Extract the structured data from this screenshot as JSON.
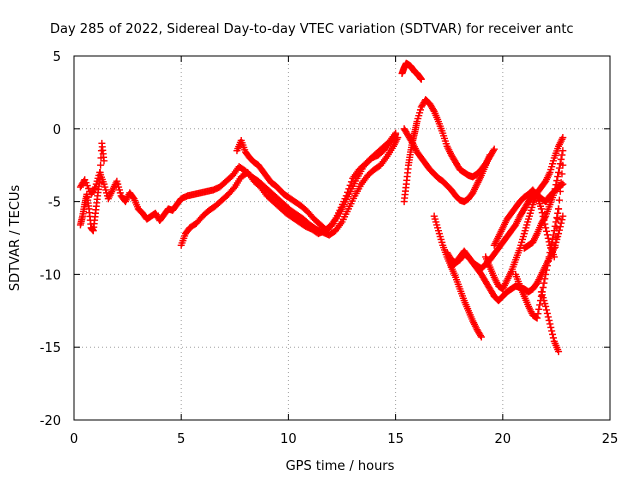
{
  "chart_data": {
    "type": "scatter",
    "title": "Day 285 of 2022, Sidereal Day-to-day VTEC variation (SDTVAR) for receiver antc",
    "xlabel": "GPS time / hours",
    "ylabel": "SDTVAR / TECUs",
    "xlim": [
      0,
      25
    ],
    "ylim": [
      -20,
      5
    ],
    "xticks": [
      0,
      5,
      10,
      15,
      20,
      25
    ],
    "yticks": [
      -20,
      -15,
      -10,
      -5,
      0,
      5
    ],
    "xtick_labels": [
      "0",
      "5",
      "10",
      "15",
      "20",
      "25"
    ],
    "ytick_labels": [
      "-20",
      "-15",
      "-10",
      "-5",
      "0",
      "5"
    ],
    "grid": true,
    "marker": "+",
    "color": "#ff0000",
    "series": [
      {
        "name": "track-main",
        "x": [
          0.3,
          0.5,
          0.8,
          1.0,
          1.2,
          1.4,
          1.6,
          1.8,
          2.0,
          2.2,
          2.4,
          2.6,
          2.8,
          3.0,
          3.2,
          3.4,
          3.6,
          3.8,
          4.0,
          4.2,
          4.4,
          4.6,
          4.8,
          5.0,
          5.3,
          5.6,
          5.9,
          6.2,
          6.5,
          6.8,
          7.1,
          7.4,
          7.7,
          8.0,
          8.3,
          8.6,
          8.9,
          9.2,
          9.5,
          9.8,
          10.1,
          10.4,
          10.7,
          11.0,
          11.3,
          11.6,
          11.9,
          12.2,
          12.5,
          12.8,
          13.1,
          13.4,
          13.7,
          14.0,
          14.3,
          14.6,
          14.9,
          15.1
        ],
        "y": [
          -4.0,
          -3.5,
          -4.5,
          -4.0,
          -3.0,
          -3.8,
          -4.8,
          -4.2,
          -3.6,
          -4.6,
          -5.0,
          -4.4,
          -4.8,
          -5.5,
          -5.8,
          -6.2,
          -6.0,
          -5.8,
          -6.3,
          -5.9,
          -5.5,
          -5.6,
          -5.2,
          -4.8,
          -4.6,
          -4.5,
          -4.4,
          -4.3,
          -4.2,
          -4.0,
          -3.6,
          -3.2,
          -2.6,
          -2.9,
          -3.3,
          -3.6,
          -4.0,
          -4.4,
          -4.8,
          -5.2,
          -5.6,
          -5.9,
          -6.2,
          -6.6,
          -6.9,
          -7.1,
          -7.3,
          -7.0,
          -6.4,
          -5.5,
          -4.6,
          -3.8,
          -3.2,
          -2.8,
          -2.5,
          -1.9,
          -1.2,
          -0.6
        ]
      },
      {
        "name": "track-upper",
        "x": [
          7.6,
          7.8,
          8.0,
          8.2,
          8.4,
          8.6,
          8.8,
          9.0,
          9.2,
          9.4,
          9.6,
          9.8,
          10.0,
          10.3,
          10.6,
          10.9,
          11.2,
          11.5,
          11.8,
          12.1,
          12.4,
          12.7,
          13.0,
          13.3,
          13.6,
          13.9,
          14.2,
          14.5,
          14.8,
          15.0
        ],
        "y": [
          -1.5,
          -0.8,
          -1.6,
          -2.0,
          -2.3,
          -2.5,
          -2.9,
          -3.3,
          -3.7,
          -3.9,
          -4.2,
          -4.5,
          -4.7,
          -5.0,
          -5.3,
          -5.7,
          -6.2,
          -6.6,
          -7.0,
          -6.5,
          -5.6,
          -4.6,
          -3.4,
          -2.8,
          -2.4,
          -2.0,
          -1.8,
          -1.4,
          -0.8,
          -0.4
        ]
      },
      {
        "name": "track-lower",
        "x": [
          5.0,
          5.2,
          5.4,
          5.7,
          6.0,
          6.3,
          6.6,
          6.9,
          7.2,
          7.5,
          7.8,
          8.1,
          8.4,
          8.7,
          9.0,
          9.3,
          9.6,
          9.9,
          10.2,
          10.5,
          10.8,
          11.1,
          11.4,
          11.7,
          12.0,
          12.3,
          12.6,
          12.9,
          13.2,
          13.5,
          13.8,
          14.1,
          14.4,
          14.7,
          15.0
        ],
        "y": [
          -8.0,
          -7.2,
          -6.8,
          -6.5,
          -6.0,
          -5.6,
          -5.3,
          -4.9,
          -4.5,
          -4.0,
          -3.3,
          -3.0,
          -3.6,
          -4.0,
          -4.6,
          -5.0,
          -5.4,
          -5.8,
          -6.1,
          -6.4,
          -6.7,
          -6.9,
          -7.2,
          -7.0,
          -6.6,
          -6.0,
          -5.2,
          -4.3,
          -3.4,
          -2.6,
          -2.1,
          -1.7,
          -1.3,
          -0.9,
          -0.3
        ]
      },
      {
        "name": "track-spike",
        "x": [
          15.3,
          15.4,
          15.5,
          15.6,
          15.7,
          15.8,
          15.9,
          16.0,
          16.1,
          16.2
        ],
        "y": [
          3.8,
          4.2,
          4.5,
          4.4,
          4.3,
          4.1,
          3.9,
          3.8,
          3.6,
          3.4
        ]
      },
      {
        "name": "track-rise",
        "x": [
          15.4,
          15.5,
          15.6,
          15.7,
          15.8,
          15.9,
          16.0,
          16.2,
          16.4,
          16.6,
          16.8,
          17.0,
          17.2,
          17.4,
          17.6,
          17.8,
          18.0,
          18.2,
          18.4,
          18.6,
          18.8,
          19.0,
          19.2,
          19.4,
          19.6
        ],
        "y": [
          -5.0,
          -3.8,
          -2.5,
          -1.6,
          -0.8,
          -0.2,
          0.5,
          1.5,
          2.0,
          1.7,
          1.2,
          0.5,
          -0.3,
          -1.2,
          -1.8,
          -2.3,
          -2.8,
          -3.0,
          -3.2,
          -3.3,
          -3.1,
          -2.8,
          -2.4,
          -1.9,
          -1.4
        ]
      },
      {
        "name": "track-hook",
        "x": [
          15.4,
          15.6,
          15.8,
          16.0,
          16.2,
          16.4,
          16.6,
          16.8,
          17.0,
          17.2,
          17.4,
          17.6,
          17.8,
          18.0,
          18.2,
          18.4,
          18.6,
          18.8,
          19.0,
          19.2,
          19.4
        ],
        "y": [
          0.0,
          -0.5,
          -1.0,
          -1.6,
          -2.0,
          -2.4,
          -2.8,
          -3.1,
          -3.4,
          -3.6,
          -3.9,
          -4.2,
          -4.6,
          -4.9,
          -5.0,
          -4.8,
          -4.4,
          -3.8,
          -3.2,
          -2.5,
          -1.8
        ]
      },
      {
        "name": "track-drop-a",
        "x": [
          16.8,
          17.0,
          17.2,
          17.4,
          17.6,
          17.8,
          18.0,
          18.2,
          18.4,
          18.6,
          18.8,
          19.0
        ],
        "y": [
          -6.0,
          -7.0,
          -8.0,
          -8.8,
          -9.5,
          -10.2,
          -11.0,
          -11.8,
          -12.5,
          -13.2,
          -13.8,
          -14.3
        ]
      },
      {
        "name": "track-cross-a",
        "x": [
          17.4,
          17.6,
          17.8,
          18.0,
          18.2,
          18.4,
          18.6,
          18.8,
          19.0,
          19.2,
          19.4,
          19.6,
          19.8,
          20.0,
          20.2,
          20.4,
          20.6,
          20.8,
          21.0,
          21.2,
          21.4,
          21.6,
          21.8,
          22.0,
          22.2,
          22.4,
          22.6,
          22.8
        ],
        "y": [
          -8.5,
          -9.0,
          -9.2,
          -9.0,
          -8.6,
          -8.8,
          -9.2,
          -9.6,
          -10.0,
          -10.5,
          -11.0,
          -11.5,
          -11.8,
          -11.5,
          -11.2,
          -11.0,
          -10.8,
          -10.9,
          -11.0,
          -11.2,
          -11.0,
          -10.6,
          -10.0,
          -9.4,
          -8.8,
          -8.2,
          -7.2,
          -6.0
        ]
      },
      {
        "name": "track-cross-b",
        "x": [
          17.6,
          17.8,
          18.0,
          18.2,
          18.4,
          18.6,
          18.8,
          19.0,
          19.2,
          19.4,
          19.6,
          19.8,
          20.0,
          20.2,
          20.4,
          20.6,
          20.8,
          21.0,
          21.2,
          21.4,
          21.6,
          21.8,
          22.0,
          22.2,
          22.4,
          22.6,
          22.8
        ],
        "y": [
          -9.5,
          -9.2,
          -8.8,
          -8.4,
          -8.8,
          -9.2,
          -9.4,
          -9.6,
          -9.3,
          -9.0,
          -8.6,
          -8.2,
          -7.8,
          -7.4,
          -7.0,
          -6.6,
          -6.0,
          -5.5,
          -5.0,
          -4.6,
          -4.5,
          -4.8,
          -5.0,
          -4.6,
          -4.3,
          -4.0,
          -3.8
        ]
      },
      {
        "name": "track-late-a",
        "x": [
          19.2,
          19.4,
          19.6,
          19.8,
          20.0,
          20.2,
          20.4,
          20.6,
          20.8,
          21.0,
          21.2,
          21.4,
          21.6,
          21.8,
          22.0,
          22.2,
          22.4,
          22.6,
          22.8
        ],
        "y": [
          -8.8,
          -9.5,
          -10.2,
          -10.8,
          -11.0,
          -10.4,
          -9.8,
          -9.0,
          -8.2,
          -7.2,
          -6.2,
          -5.2,
          -4.4,
          -4.0,
          -3.6,
          -3.0,
          -2.0,
          -1.2,
          -0.6
        ]
      },
      {
        "name": "track-late-b",
        "x": [
          19.6,
          19.8,
          20.0,
          20.2,
          20.4,
          20.6,
          20.8,
          21.0,
          21.2,
          21.4,
          21.6,
          21.8,
          22.0,
          22.2,
          22.4,
          22.6,
          22.8
        ],
        "y": [
          -8.0,
          -7.4,
          -6.8,
          -6.2,
          -5.8,
          -5.4,
          -5.0,
          -4.7,
          -4.5,
          -4.2,
          -4.6,
          -5.5,
          -6.8,
          -8.0,
          -8.8,
          -5.5,
          -2.5
        ]
      },
      {
        "name": "track-late-c",
        "x": [
          20.6,
          20.8,
          21.0,
          21.2,
          21.4,
          21.6,
          21.8,
          22.0,
          22.2,
          22.4,
          22.6
        ],
        "y": [
          -10.0,
          -10.8,
          -11.5,
          -12.2,
          -12.8,
          -13.0,
          -11.5,
          -10.0,
          -8.5,
          -7.0,
          -5.5
        ]
      },
      {
        "name": "track-late-d",
        "x": [
          21.0,
          21.2,
          21.4,
          21.6,
          21.8,
          22.0,
          22.2,
          22.4,
          22.6,
          22.8
        ],
        "y": [
          -8.2,
          -8.0,
          -7.8,
          -7.2,
          -6.5,
          -6.0,
          -5.2,
          -4.4,
          -3.0,
          -1.5
        ]
      },
      {
        "name": "track-tail",
        "x": [
          21.8,
          22.0,
          22.2,
          22.4,
          22.6
        ],
        "y": [
          -11.2,
          -12.2,
          -13.4,
          -14.6,
          -15.3
        ]
      },
      {
        "name": "track-start",
        "x": [
          0.3,
          0.4,
          0.5,
          0.6,
          0.7,
          0.8,
          0.9,
          1.0,
          1.1,
          1.2,
          1.3,
          1.4
        ],
        "y": [
          -6.6,
          -6.0,
          -5.2,
          -4.5,
          -5.5,
          -6.8,
          -7.0,
          -5.8,
          -4.6,
          -3.5,
          -1.0,
          -2.2
        ]
      }
    ]
  }
}
